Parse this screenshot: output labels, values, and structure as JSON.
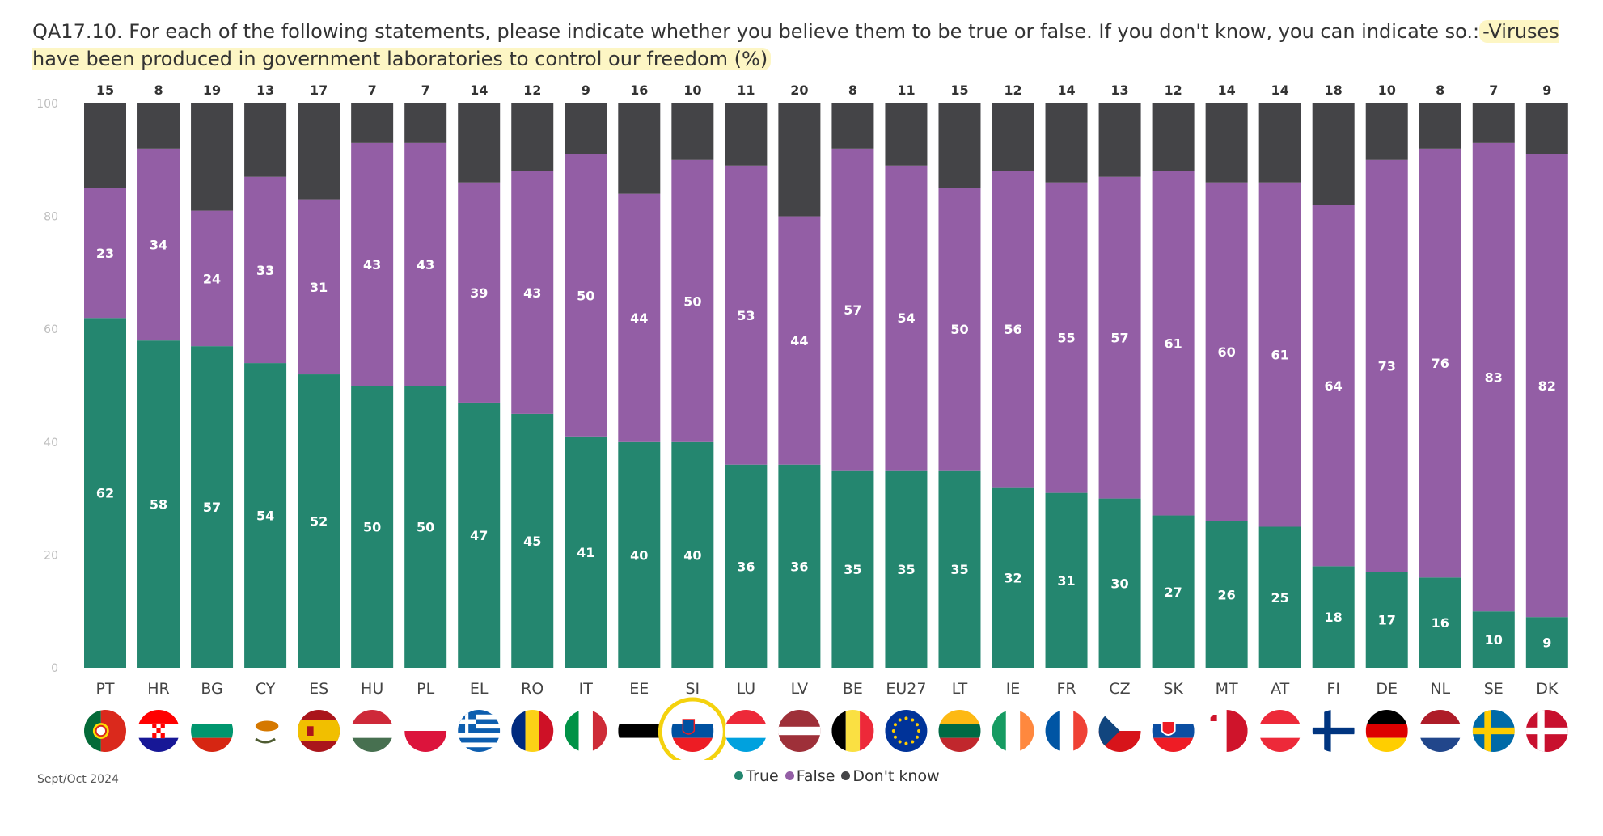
{
  "title_prefix": "QA17.10. For each of the following statements, please indicate whether you believe them to be true or false. If you don't know, you can indicate so.:",
  "title_highlight": "-Viruses have been produced in government laboratories to control our freedom (%)",
  "footer_date": "Sept/Oct 2024",
  "colors": {
    "true": "#24866f",
    "false": "#935ea5",
    "dont_know": "#444447",
    "highlight_ring": "#f4d20e"
  },
  "legend": [
    {
      "label": "True",
      "color": "#24866f"
    },
    {
      "label": "False",
      "color": "#935ea5"
    },
    {
      "label": "Don't know",
      "color": "#444447"
    }
  ],
  "highlighted_country": "SI",
  "flags": [
    "portugal-flag",
    "croatia-flag",
    "bulgaria-flag",
    "cyprus-flag",
    "spain-flag",
    "hungary-flag",
    "poland-flag",
    "greece-flag",
    "romania-flag",
    "italy-flag",
    "estonia-flag",
    "slovenia-flag",
    "luxembourg-flag",
    "latvia-flag",
    "belgium-flag",
    "eu-flag",
    "lithuania-flag",
    "ireland-flag",
    "france-flag",
    "czechia-flag",
    "slovakia-flag",
    "malta-flag",
    "austria-flag",
    "finland-flag",
    "germany-flag",
    "netherlands-flag",
    "sweden-flag",
    "denmark-flag"
  ],
  "chart_data": {
    "type": "bar",
    "stacked": true,
    "categories": [
      "PT",
      "HR",
      "BG",
      "CY",
      "ES",
      "HU",
      "PL",
      "EL",
      "RO",
      "IT",
      "EE",
      "SI",
      "LU",
      "LV",
      "BE",
      "EU27",
      "LT",
      "IE",
      "FR",
      "CZ",
      "SK",
      "MT",
      "AT",
      "FI",
      "DE",
      "NL",
      "SE",
      "DK"
    ],
    "series": [
      {
        "name": "True",
        "values": [
          62,
          58,
          57,
          54,
          52,
          50,
          50,
          47,
          45,
          41,
          40,
          40,
          36,
          36,
          35,
          35,
          35,
          32,
          31,
          30,
          27,
          26,
          25,
          18,
          17,
          16,
          10,
          9
        ]
      },
      {
        "name": "False",
        "values": [
          23,
          34,
          24,
          33,
          31,
          43,
          43,
          39,
          43,
          50,
          44,
          50,
          53,
          44,
          57,
          54,
          50,
          56,
          55,
          57,
          61,
          60,
          61,
          64,
          73,
          76,
          83,
          82
        ]
      },
      {
        "name": "Don't know",
        "values": [
          15,
          8,
          19,
          13,
          17,
          7,
          7,
          14,
          12,
          9,
          16,
          10,
          11,
          20,
          8,
          11,
          15,
          12,
          14,
          13,
          12,
          14,
          14,
          18,
          10,
          8,
          7,
          9
        ]
      }
    ],
    "yticks": [
      0,
      20,
      40,
      60,
      80,
      100
    ],
    "ylim": [
      0,
      100
    ],
    "grid": false,
    "legend_position": "bottom-center"
  }
}
